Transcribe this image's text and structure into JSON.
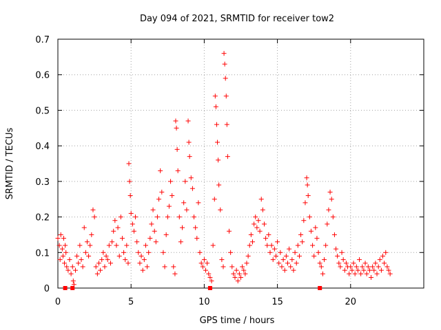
{
  "chart_data": {
    "type": "scatter",
    "title": "Day 094 of 2021, SRMTID for receiver tow2",
    "xlabel": "GPS time / hours",
    "ylabel": "SRMTID / TECUs",
    "xlim": [
      0,
      25
    ],
    "ylim": [
      0,
      0.7
    ],
    "xticks": [
      "0",
      "5",
      "10",
      "15",
      "20"
    ],
    "yticks": [
      "0",
      "0.1",
      "0.2",
      "0.3",
      "0.4",
      "0.5",
      "0.6",
      "0.7"
    ],
    "grid": true,
    "marker_color": "#ff0000",
    "series": [
      {
        "name": "SRMTID",
        "points": [
          [
            0.0,
            0.14
          ],
          [
            0.1,
            0.12
          ],
          [
            0.15,
            0.08
          ],
          [
            0.2,
            0.15
          ],
          [
            0.3,
            0.11
          ],
          [
            0.35,
            0.09
          ],
          [
            0.4,
            0.14
          ],
          [
            0.45,
            0.07
          ],
          [
            0.5,
            0.12
          ],
          [
            0.55,
            0.1
          ],
          [
            0.6,
            0.06
          ],
          [
            0.7,
            0.05
          ],
          [
            0.8,
            0.08
          ],
          [
            0.9,
            0.04
          ],
          [
            1.0,
            0.06
          ],
          [
            1.05,
            0.02
          ],
          [
            1.1,
            0.01
          ],
          [
            1.2,
            0.05
          ],
          [
            1.3,
            0.09
          ],
          [
            1.4,
            0.07
          ],
          [
            1.5,
            0.12
          ],
          [
            1.6,
            0.08
          ],
          [
            1.7,
            0.06
          ],
          [
            1.8,
            0.17
          ],
          [
            1.9,
            0.1
          ],
          [
            2.0,
            0.13
          ],
          [
            2.1,
            0.09
          ],
          [
            2.2,
            0.12
          ],
          [
            2.3,
            0.15
          ],
          [
            2.4,
            0.22
          ],
          [
            2.5,
            0.2
          ],
          [
            2.6,
            0.06
          ],
          [
            2.7,
            0.04
          ],
          [
            2.8,
            0.07
          ],
          [
            2.9,
            0.05
          ],
          [
            3.0,
            0.08
          ],
          [
            3.1,
            0.1
          ],
          [
            3.2,
            0.06
          ],
          [
            3.3,
            0.09
          ],
          [
            3.4,
            0.08
          ],
          [
            3.5,
            0.12
          ],
          [
            3.6,
            0.07
          ],
          [
            3.7,
            0.13
          ],
          [
            3.8,
            0.16
          ],
          [
            3.9,
            0.19
          ],
          [
            4.0,
            0.12
          ],
          [
            4.1,
            0.17
          ],
          [
            4.2,
            0.09
          ],
          [
            4.3,
            0.2
          ],
          [
            4.4,
            0.14
          ],
          [
            4.5,
            0.1
          ],
          [
            4.6,
            0.08
          ],
          [
            4.7,
            0.12
          ],
          [
            4.8,
            0.07
          ],
          [
            4.85,
            0.35
          ],
          [
            4.9,
            0.3
          ],
          [
            4.95,
            0.26
          ],
          [
            5.0,
            0.21
          ],
          [
            5.1,
            0.18
          ],
          [
            5.2,
            0.16
          ],
          [
            5.3,
            0.2
          ],
          [
            5.4,
            0.13
          ],
          [
            5.5,
            0.1
          ],
          [
            5.6,
            0.07
          ],
          [
            5.7,
            0.09
          ],
          [
            5.8,
            0.05
          ],
          [
            5.9,
            0.08
          ],
          [
            6.0,
            0.12
          ],
          [
            6.1,
            0.06
          ],
          [
            6.2,
            0.1
          ],
          [
            6.3,
            0.14
          ],
          [
            6.4,
            0.18
          ],
          [
            6.5,
            0.22
          ],
          [
            6.6,
            0.16
          ],
          [
            6.7,
            0.13
          ],
          [
            6.8,
            0.2
          ],
          [
            6.9,
            0.25
          ],
          [
            7.0,
            0.33
          ],
          [
            7.1,
            0.27
          ],
          [
            7.2,
            0.1
          ],
          [
            7.3,
            0.06
          ],
          [
            7.4,
            0.15
          ],
          [
            7.5,
            0.2
          ],
          [
            7.6,
            0.23
          ],
          [
            7.7,
            0.3
          ],
          [
            7.8,
            0.26
          ],
          [
            7.9,
            0.06
          ],
          [
            8.0,
            0.04
          ],
          [
            8.05,
            0.47
          ],
          [
            8.1,
            0.45
          ],
          [
            8.15,
            0.39
          ],
          [
            8.2,
            0.33
          ],
          [
            8.3,
            0.2
          ],
          [
            8.4,
            0.13
          ],
          [
            8.5,
            0.17
          ],
          [
            8.6,
            0.24
          ],
          [
            8.7,
            0.3
          ],
          [
            8.8,
            0.22
          ],
          [
            8.9,
            0.47
          ],
          [
            8.95,
            0.41
          ],
          [
            9.0,
            0.37
          ],
          [
            9.1,
            0.31
          ],
          [
            9.2,
            0.28
          ],
          [
            9.3,
            0.2
          ],
          [
            9.4,
            0.17
          ],
          [
            9.5,
            0.14
          ],
          [
            9.6,
            0.24
          ],
          [
            9.7,
            0.1
          ],
          [
            9.8,
            0.07
          ],
          [
            9.9,
            0.06
          ],
          [
            10.0,
            0.08
          ],
          [
            10.1,
            0.05
          ],
          [
            10.2,
            0.07
          ],
          [
            10.3,
            0.04
          ],
          [
            10.4,
            0.03
          ],
          [
            10.5,
            0.02
          ],
          [
            10.6,
            0.12
          ],
          [
            10.7,
            0.25
          ],
          [
            10.75,
            0.54
          ],
          [
            10.8,
            0.51
          ],
          [
            10.85,
            0.46
          ],
          [
            10.9,
            0.41
          ],
          [
            10.95,
            0.36
          ],
          [
            11.0,
            0.29
          ],
          [
            11.1,
            0.22
          ],
          [
            11.2,
            0.08
          ],
          [
            11.3,
            0.06
          ],
          [
            11.35,
            0.66
          ],
          [
            11.4,
            0.63
          ],
          [
            11.45,
            0.59
          ],
          [
            11.5,
            0.54
          ],
          [
            11.55,
            0.46
          ],
          [
            11.6,
            0.37
          ],
          [
            11.7,
            0.16
          ],
          [
            11.8,
            0.1
          ],
          [
            11.9,
            0.06
          ],
          [
            12.0,
            0.04
          ],
          [
            12.1,
            0.03
          ],
          [
            12.2,
            0.05
          ],
          [
            12.3,
            0.02
          ],
          [
            12.4,
            0.04
          ],
          [
            12.5,
            0.03
          ],
          [
            12.6,
            0.06
          ],
          [
            12.7,
            0.05
          ],
          [
            12.8,
            0.04
          ],
          [
            12.9,
            0.07
          ],
          [
            13.0,
            0.09
          ],
          [
            13.1,
            0.12
          ],
          [
            13.2,
            0.15
          ],
          [
            13.3,
            0.13
          ],
          [
            13.4,
            0.18
          ],
          [
            13.5,
            0.2
          ],
          [
            13.6,
            0.17
          ],
          [
            13.7,
            0.19
          ],
          [
            13.8,
            0.16
          ],
          [
            13.9,
            0.25
          ],
          [
            14.0,
            0.22
          ],
          [
            14.1,
            0.18
          ],
          [
            14.2,
            0.14
          ],
          [
            14.3,
            0.12
          ],
          [
            14.4,
            0.15
          ],
          [
            14.5,
            0.1
          ],
          [
            14.6,
            0.12
          ],
          [
            14.7,
            0.08
          ],
          [
            14.8,
            0.11
          ],
          [
            14.9,
            0.09
          ],
          [
            15.0,
            0.13
          ],
          [
            15.1,
            0.07
          ],
          [
            15.2,
            0.1
          ],
          [
            15.3,
            0.06
          ],
          [
            15.4,
            0.08
          ],
          [
            15.5,
            0.05
          ],
          [
            15.6,
            0.09
          ],
          [
            15.7,
            0.07
          ],
          [
            15.8,
            0.11
          ],
          [
            15.9,
            0.06
          ],
          [
            16.0,
            0.08
          ],
          [
            16.1,
            0.05
          ],
          [
            16.2,
            0.1
          ],
          [
            16.3,
            0.07
          ],
          [
            16.4,
            0.12
          ],
          [
            16.5,
            0.09
          ],
          [
            16.6,
            0.15
          ],
          [
            16.7,
            0.13
          ],
          [
            16.8,
            0.19
          ],
          [
            16.9,
            0.24
          ],
          [
            17.0,
            0.31
          ],
          [
            17.05,
            0.29
          ],
          [
            17.1,
            0.26
          ],
          [
            17.2,
            0.2
          ],
          [
            17.3,
            0.16
          ],
          [
            17.4,
            0.12
          ],
          [
            17.5,
            0.09
          ],
          [
            17.6,
            0.17
          ],
          [
            17.7,
            0.14
          ],
          [
            17.8,
            0.1
          ],
          [
            17.9,
            0.07
          ],
          [
            18.0,
            0.06
          ],
          [
            18.1,
            0.04
          ],
          [
            18.2,
            0.08
          ],
          [
            18.3,
            0.12
          ],
          [
            18.4,
            0.18
          ],
          [
            18.5,
            0.22
          ],
          [
            18.6,
            0.27
          ],
          [
            18.7,
            0.25
          ],
          [
            18.8,
            0.2
          ],
          [
            18.9,
            0.15
          ],
          [
            19.0,
            0.11
          ],
          [
            19.1,
            0.09
          ],
          [
            19.2,
            0.07
          ],
          [
            19.3,
            0.06
          ],
          [
            19.4,
            0.1
          ],
          [
            19.5,
            0.08
          ],
          [
            19.6,
            0.05
          ],
          [
            19.7,
            0.07
          ],
          [
            19.8,
            0.06
          ],
          [
            19.9,
            0.04
          ],
          [
            20.0,
            0.06
          ],
          [
            20.1,
            0.05
          ],
          [
            20.2,
            0.07
          ],
          [
            20.3,
            0.04
          ],
          [
            20.4,
            0.06
          ],
          [
            20.5,
            0.05
          ],
          [
            20.6,
            0.08
          ],
          [
            20.7,
            0.04
          ],
          [
            20.8,
            0.06
          ],
          [
            20.9,
            0.05
          ],
          [
            21.0,
            0.07
          ],
          [
            21.1,
            0.04
          ],
          [
            21.2,
            0.06
          ],
          [
            21.3,
            0.05
          ],
          [
            21.4,
            0.03
          ],
          [
            21.5,
            0.06
          ],
          [
            21.6,
            0.05
          ],
          [
            21.7,
            0.07
          ],
          [
            21.8,
            0.04
          ],
          [
            21.9,
            0.06
          ],
          [
            22.0,
            0.08
          ],
          [
            22.1,
            0.05
          ],
          [
            22.2,
            0.09
          ],
          [
            22.3,
            0.07
          ],
          [
            22.4,
            0.1
          ],
          [
            22.5,
            0.06
          ],
          [
            22.6,
            0.05
          ],
          [
            22.7,
            0.04
          ]
        ]
      }
    ],
    "zero_markers_x": [
      0.5,
      1.0,
      10.4,
      17.9
    ]
  }
}
